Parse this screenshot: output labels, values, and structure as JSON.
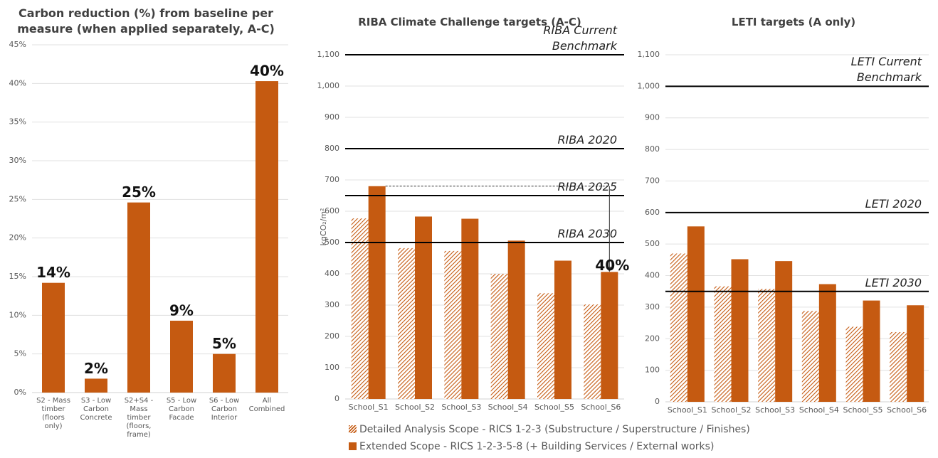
{
  "chart_data": [
    {
      "type": "bar",
      "title": "Carbon reduction (%) from baseline per measure (when applied separately, A-C)",
      "categories": [
        "S2 - Mass timber (floors only)",
        "S3 - Low Carbon Concrete",
        "S2+S4 - Mass timber (floors, frame)",
        "S5 - Low Carbon Facade",
        "S6 - Low Carbon Interior",
        "All Combined"
      ],
      "values": [
        14.2,
        1.8,
        24.6,
        9.3,
        5.0,
        40.3
      ],
      "value_labels": [
        "14%",
        "2%",
        "25%",
        "9%",
        "5%",
        "40%"
      ],
      "color": "#c55a11",
      "ylim": [
        0,
        45
      ],
      "yticks": [
        {
          "value": 0,
          "label": "0%"
        },
        {
          "value": 5,
          "label": "5%"
        },
        {
          "value": 10,
          "label": "10%"
        },
        {
          "value": 15,
          "label": "15%"
        },
        {
          "value": 20,
          "label": "20%"
        },
        {
          "value": 25,
          "label": "25%"
        },
        {
          "value": 30,
          "label": "30%"
        },
        {
          "value": 35,
          "label": "35%"
        },
        {
          "value": 40,
          "label": "40%"
        },
        {
          "value": 45,
          "label": "45%"
        }
      ],
      "grid": true
    },
    {
      "type": "bar",
      "title": "RIBA Climate Challenge targets (A-C)",
      "ylabel": "kgCO₂/m²",
      "categories": [
        "School_S1",
        "School_S2",
        "School_S3",
        "School_S4",
        "School_S5",
        "School_S6"
      ],
      "series": [
        {
          "name": "Detailed Analysis Scope -  RICS 1-2-3 (Substructure / Superstructure / Finishes)",
          "color": "#c55a11",
          "hatch": true,
          "values": [
            577,
            482,
            473,
            400,
            338,
            302
          ]
        },
        {
          "name": "Extended Scope - RICS 1-2-3-5-8 (+ Building Services  / External works)",
          "color": "#c55a11",
          "values": [
            680,
            583,
            576,
            506,
            442,
            406
          ]
        }
      ],
      "reference_lines": [
        {
          "label": "RIBA Current Benchmark",
          "value": 1100
        },
        {
          "label": "RIBA 2020",
          "value": 800
        },
        {
          "label": "RIBA 2025",
          "value": 650
        },
        {
          "label": "RIBA 2030",
          "value": 500
        }
      ],
      "annotations": [
        {
          "text": "40%"
        }
      ],
      "ylim": [
        0,
        1100
      ],
      "yticks": [
        0,
        100,
        200,
        300,
        400,
        500,
        600,
        700,
        800,
        900,
        {
          "value": 1000,
          "label": "1,000"
        },
        {
          "value": 1100,
          "label": "1,100"
        }
      ],
      "grid": true,
      "legend": "bottom"
    },
    {
      "type": "bar",
      "title": "LETI targets (A only)",
      "categories": [
        "School_S1",
        "School_S2",
        "School_S3",
        "School_S4",
        "School_S5",
        "School_S6"
      ],
      "series": [
        {
          "color": "#c55a11",
          "hatch": true,
          "values": [
            470,
            366,
            358,
            288,
            238,
            221
          ]
        },
        {
          "color": "#c55a11",
          "values": [
            556,
            452,
            446,
            373,
            321,
            306
          ]
        }
      ],
      "reference_lines": [
        {
          "label": "LETI Current Benchmark",
          "value": 1000
        },
        {
          "label": "LETI 2020",
          "value": 600
        },
        {
          "label": "LETI 2030",
          "value": 350
        }
      ],
      "ylim": [
        0,
        1100
      ],
      "yticks": [
        0,
        100,
        200,
        300,
        400,
        500,
        600,
        700,
        800,
        900,
        {
          "value": 1000,
          "label": "1,000"
        },
        {
          "value": 1100,
          "label": "1,100"
        }
      ],
      "grid": true
    }
  ]
}
